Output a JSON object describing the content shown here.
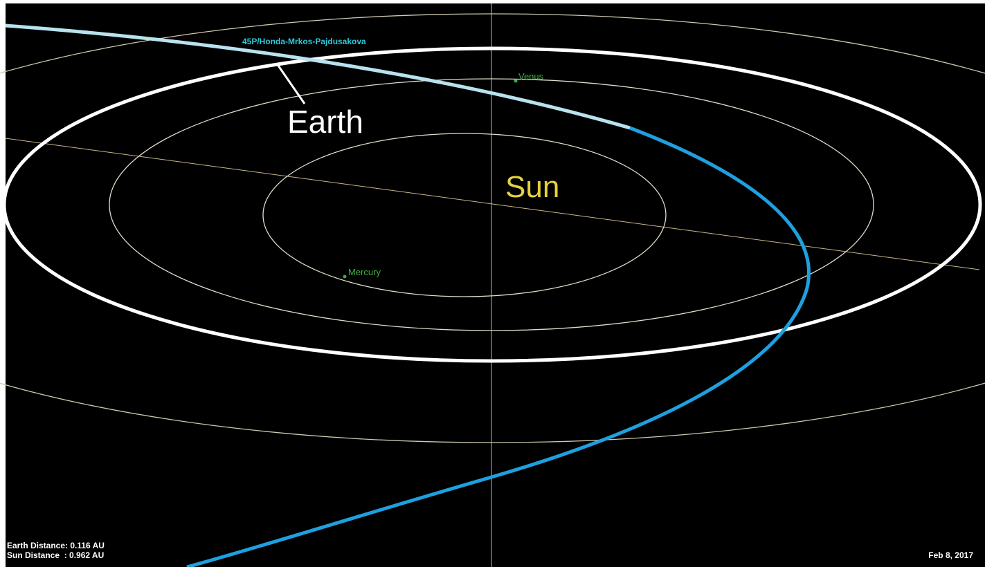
{
  "labels": {
    "comet": "45P/Honda-Mrkos-Pajdusakova",
    "earth": "Earth",
    "sun": "Sun",
    "venus": "Venus",
    "mercury": "Mercury"
  },
  "info": {
    "earth_distance": "Earth Distance: 0.116 AU",
    "sun_distance": "Sun Distance  : 0.962 AU",
    "date": "Feb 8, 2017"
  }
}
